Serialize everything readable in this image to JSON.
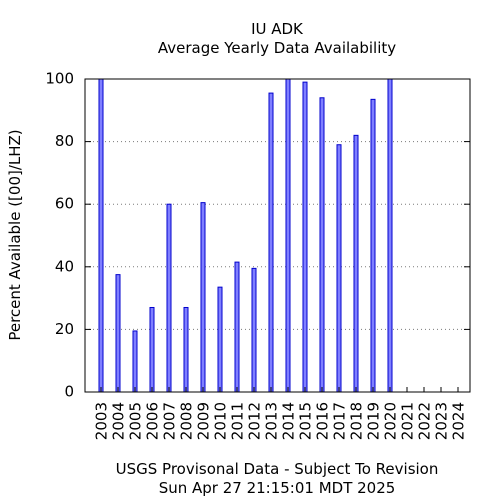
{
  "chart_data": {
    "type": "bar",
    "title": "IU ADK",
    "subtitle": "Average Yearly Data Availability",
    "ylabel": "Percent Available ([00]/LHZ)",
    "ylim": [
      0,
      100
    ],
    "yticks": [
      0,
      20,
      40,
      60,
      80,
      100
    ],
    "grid": true,
    "categories": [
      "2003",
      "2004",
      "2005",
      "2006",
      "2007",
      "2008",
      "2009",
      "2010",
      "2011",
      "2012",
      "2013",
      "2014",
      "2015",
      "2016",
      "2017",
      "2018",
      "2019",
      "2020",
      "2021",
      "2022",
      "2023",
      "2024"
    ],
    "values": [
      100,
      37.5,
      19.5,
      27,
      60,
      27,
      60.5,
      33.5,
      41.5,
      39.5,
      95.5,
      100,
      99,
      94,
      79,
      82,
      93.5,
      100,
      0,
      0,
      0,
      0
    ],
    "colors": {
      "bar_fill": "#7f7fff",
      "bar_edge": "#0000cc",
      "grid": "#7a7a7a"
    }
  },
  "footer": {
    "line1": "USGS Provisonal Data - Subject To Revision",
    "line2": "Sun Apr 27 21:15:01 MDT 2025"
  }
}
